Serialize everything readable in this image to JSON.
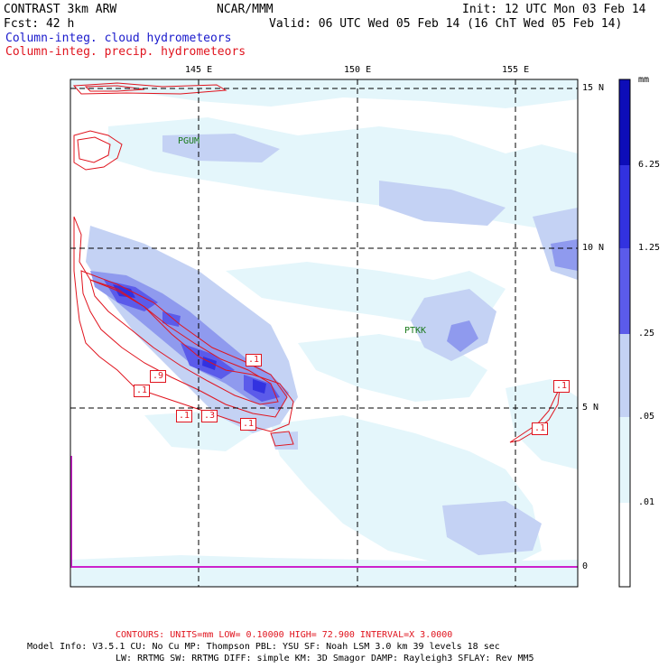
{
  "header": {
    "model": "CONTRAST  3km ARW",
    "org": "NCAR/MMM",
    "init": "Init: 12 UTC Mon 03 Feb 14",
    "fcst": "Fcst:   42 h",
    "valid": "Valid: 06 UTC Wed 05 Feb 14 (16 ChT Wed 05 Feb 14)",
    "field1": "Column-integ. cloud hydrometeors",
    "field2": "Column-integ. precip. hydrometeors"
  },
  "map": {
    "lon_labels": [
      "145 E",
      "150 E",
      "155 E"
    ],
    "lat_labels": [
      "15 N",
      "10 N",
      "5 N",
      "0"
    ],
    "stations": [
      "PGUM",
      "PTKK"
    ],
    "contour_labels": [
      ".1",
      ".1",
      ".9",
      ".1",
      ".3",
      ".1",
      ".1",
      ".1"
    ],
    "colors": {
      "c1": "#e4f6fb",
      "c2": "#c4d2f4",
      "c3": "#8f9aee",
      "c4": "#5b5bea",
      "c5": "#3232e0",
      "c6": "#0d0db8",
      "contour": "#e0141e",
      "station": "#1a7a1a"
    }
  },
  "colorbar": {
    "unit": "mm",
    "ticks": [
      "6.25",
      "1.25",
      ".25",
      ".05",
      ".01"
    ]
  },
  "footer": {
    "contours": "CONTOURS:  UNITS=mm  LOW= 0.10000    HIGH= 72.900    INTERVAL=X  3.0000",
    "info1": "Model Info: V3.5.1    CU: No Cu     MP: Thompson    PBL: YSU      SF: Noah LSM    3.0 km   39 levels   18 sec",
    "info2": "LW: RRTMG    SW: RRTMG  DIFF: simple KM: 3D Smagor DAMP: Rayleigh3  SFLAY: Rev MM5"
  }
}
